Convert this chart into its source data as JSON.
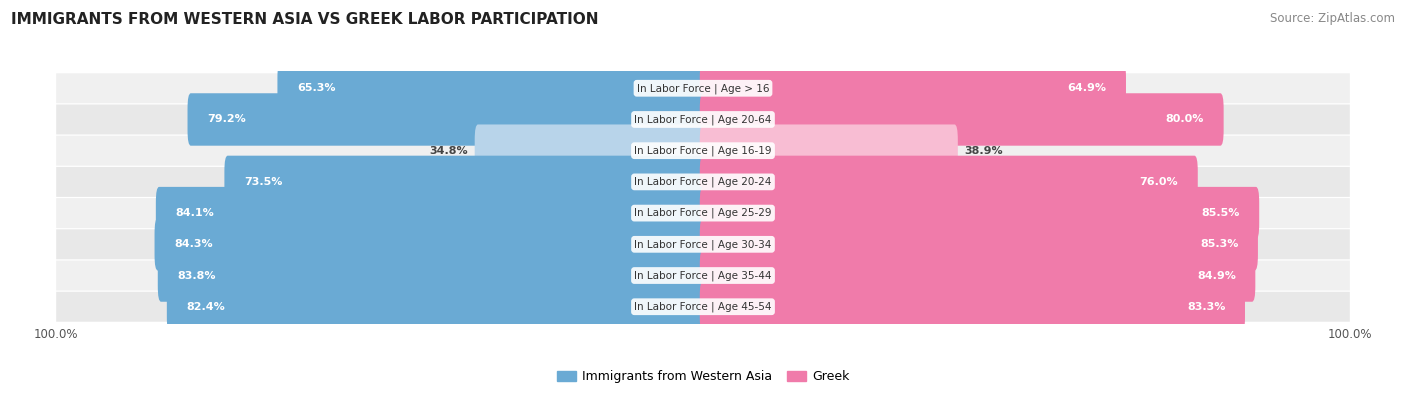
{
  "title": "IMMIGRANTS FROM WESTERN ASIA VS GREEK LABOR PARTICIPATION",
  "source": "Source: ZipAtlas.com",
  "categories": [
    "In Labor Force | Age > 16",
    "In Labor Force | Age 20-64",
    "In Labor Force | Age 16-19",
    "In Labor Force | Age 20-24",
    "In Labor Force | Age 25-29",
    "In Labor Force | Age 30-34",
    "In Labor Force | Age 35-44",
    "In Labor Force | Age 45-54"
  ],
  "left_values": [
    65.3,
    79.2,
    34.8,
    73.5,
    84.1,
    84.3,
    83.8,
    82.4
  ],
  "right_values": [
    64.9,
    80.0,
    38.9,
    76.0,
    85.5,
    85.3,
    84.9,
    83.3
  ],
  "left_color_strong": "#6aaad4",
  "left_color_weak": "#b8d4ea",
  "right_color_strong": "#f07baa",
  "right_color_weak": "#f8bdd3",
  "row_bg_even": "#f0f0f0",
  "row_bg_odd": "#e8e8e8",
  "max_value": 100.0,
  "legend_left_label": "Immigrants from Western Asia",
  "legend_right_label": "Greek",
  "left_axis_label": "100.0%",
  "right_axis_label": "100.0%",
  "title_fontsize": 11,
  "source_fontsize": 8.5,
  "bar_label_fontsize": 8,
  "category_fontsize": 7.5,
  "legend_fontsize": 9,
  "background_color": "#ffffff"
}
